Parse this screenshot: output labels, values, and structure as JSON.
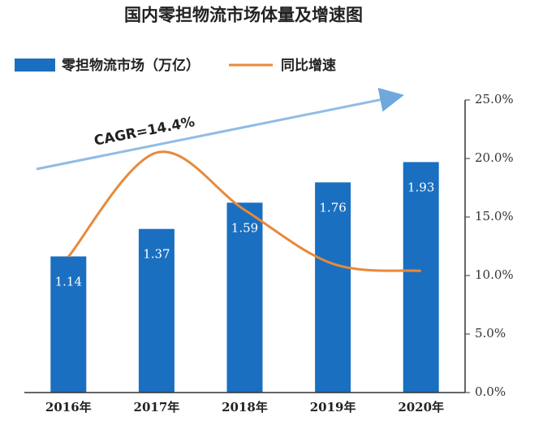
{
  "chart_data": {
    "type": "bar-line",
    "title": "国内零担物流市场体量及增速图",
    "annotation": "CAGR=14.4%",
    "categories": [
      "2016年",
      "2017年",
      "2018年",
      "2019年",
      "2020年"
    ],
    "series": [
      {
        "name": "零担物流市场（万亿）",
        "color": "#1a6fc0",
        "type": "bar",
        "values": [
          1.14,
          1.37,
          1.59,
          1.76,
          1.93
        ]
      },
      {
        "name": "同比增速",
        "color": "#e8893a",
        "type": "line",
        "axis": "y2",
        "values": [
          11.6,
          20.5,
          15.6,
          11.0,
          10.4
        ]
      }
    ],
    "ylim": [
      0,
      2.45
    ],
    "y2lim": [
      0,
      25
    ],
    "y2ticks": [
      {
        "value": 0,
        "label": "0.0%"
      },
      {
        "value": 5,
        "label": "5.0%"
      },
      {
        "value": 10,
        "label": "10.0%"
      },
      {
        "value": 15,
        "label": "15.0%"
      },
      {
        "value": 20,
        "label": "20.0%"
      },
      {
        "value": 25,
        "label": "25.0%"
      }
    ],
    "legend": "top"
  }
}
